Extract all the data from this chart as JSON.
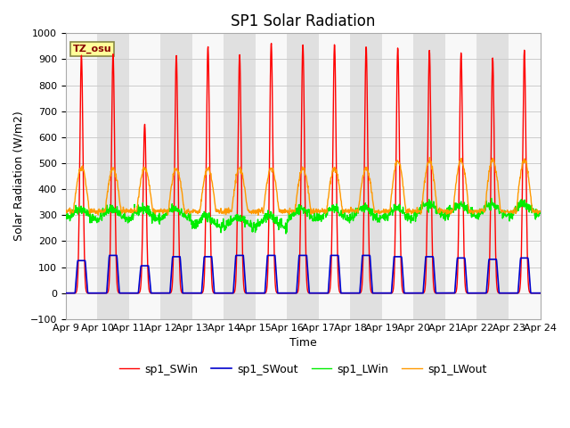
{
  "title": "SP1 Solar Radiation",
  "ylabel": "Solar Radiation (W/m2)",
  "xlabel": "Time",
  "ylim": [
    -100,
    1000
  ],
  "xlim": [
    0,
    15
  ],
  "xtick_labels": [
    "Apr 9",
    "Apr 10",
    "Apr 11",
    "Apr 12",
    "Apr 13",
    "Apr 14",
    "Apr 15",
    "Apr 16",
    "Apr 17",
    "Apr 18",
    "Apr 19",
    "Apr 20",
    "Apr 21",
    "Apr 22",
    "Apr 23",
    "Apr 24"
  ],
  "xtick_positions": [
    0,
    1,
    2,
    3,
    4,
    5,
    6,
    7,
    8,
    9,
    10,
    11,
    12,
    13,
    14,
    15
  ],
  "colors": {
    "sp1_SWin": "#ff0000",
    "sp1_SWout": "#0000cc",
    "sp1_LWin": "#00ee00",
    "sp1_LWout": "#ff9900"
  },
  "legend_labels": [
    "sp1_SWin",
    "sp1_SWout",
    "sp1_LWin",
    "sp1_LWout"
  ],
  "annotation_text": "TZ_osu",
  "annotation_color": "#880000",
  "annotation_bg": "#ffff99",
  "title_fontsize": 12,
  "axis_fontsize": 9,
  "tick_fontsize": 8,
  "n_days": 15,
  "pts_per_day": 96,
  "band_color": "#e0e0e0",
  "plot_bg": "#f8f8f8",
  "grid_color": "#cccccc"
}
